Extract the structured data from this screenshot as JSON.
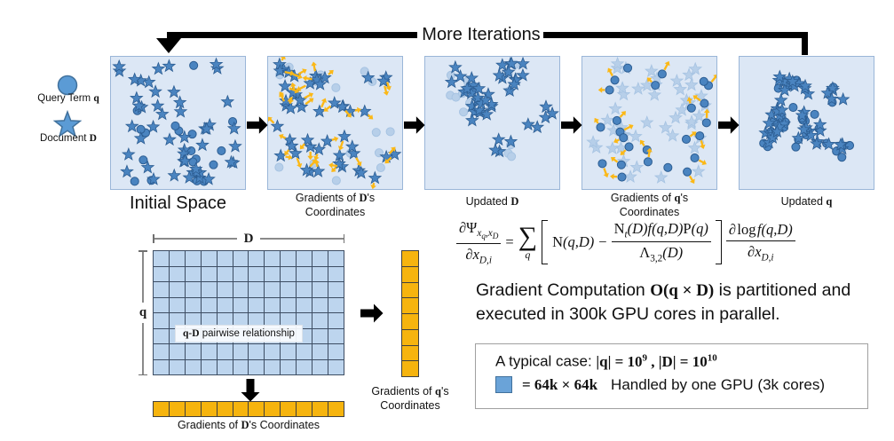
{
  "loop": {
    "label": "More Iterations"
  },
  "legend": {
    "query_pre": "Query Term ",
    "query_em": "q",
    "doc_pre": "Document ",
    "doc_em": "D"
  },
  "panels": [
    {
      "seed": 7,
      "stars": 48,
      "circles": 18,
      "star_style": "strong",
      "circle_style": "strong",
      "arrows_on": "none",
      "layout": "uniform",
      "label": [
        {
          "pre": "Initial Space",
          "em": "",
          "post": ""
        }
      ]
    },
    {
      "seed": 13,
      "stars": 50,
      "circles": 15,
      "star_style": "strong",
      "circle_style": "faded",
      "arrows_on": "stars",
      "layout": "uniform",
      "label": [
        {
          "pre": "Gradients of ",
          "em": "D",
          "post": "'s"
        },
        {
          "pre": "Coordinates",
          "em": "",
          "post": ""
        }
      ]
    },
    {
      "seed": 29,
      "stars": 46,
      "circles": 16,
      "star_style": "strong",
      "circle_style": "faded",
      "arrows_on": "none",
      "layout": "cluster",
      "label": [
        {
          "pre": "Updated ",
          "em": "D",
          "post": ""
        }
      ]
    },
    {
      "seed": 41,
      "stars": 46,
      "circles": 25,
      "star_style": "faded",
      "circle_style": "strong",
      "arrows_on": "circles",
      "layout": "uniform",
      "label": [
        {
          "pre": "Gradients of ",
          "em": "q",
          "post": "'s"
        },
        {
          "pre": "Coordinates",
          "em": "",
          "post": ""
        }
      ]
    },
    {
      "seed": 57,
      "stars": 48,
      "circles": 26,
      "star_style": "strong",
      "circle_style": "strong",
      "arrows_on": "none",
      "layout": "cluster",
      "label": [
        {
          "pre": "Updated ",
          "em": "q",
          "post": ""
        }
      ]
    }
  ],
  "matrix": {
    "cols": 12,
    "rows": 8,
    "top_label": "D",
    "left_label": "q",
    "overlay_em": "q-D",
    "overlay_text": " pairwise relationship",
    "col_vec_cells": 8,
    "row_vec_cells": 12,
    "col_vec_label": [
      {
        "pre": "Gradients of ",
        "em": "q",
        "post": "'s"
      },
      {
        "pre": "Coordinates",
        "em": "",
        "post": ""
      }
    ],
    "row_vec_label": {
      "pre": "Gradients of ",
      "em": "D",
      "post": "'s Coordinates"
    }
  },
  "formula": {
    "d": "∂",
    "psi": "Ψ",
    "x": "x",
    "q": "q",
    "D": "D",
    "comma": ",",
    "Di": "D,i",
    "eq": "=",
    "sigma": "∑",
    "N": "N",
    "qD": "(q,D)",
    "minus": "−",
    "t": "t",
    "f": "f",
    "P": "P",
    "Pq": "(q)",
    "lam": "Λ",
    "lamsub": "3,2",
    "lamD": "(D)",
    "log": "log"
  },
  "caption": {
    "pre": "Gradient Computation ",
    "em": "O(q × D)",
    "post": " is partitioned and",
    "line2": "executed in 300k GPU cores in parallel."
  },
  "typical_box": {
    "line1_pre": "A typical case: ",
    "m1": "|q| = 10",
    "sup1": "9",
    "m2": " , |D| = 10",
    "sup2": "10",
    "eq": "= 64k × 64k",
    "rest": "Handled by one GPU (3k cores)"
  },
  "colors": {
    "strong_fill": "#4a84c0",
    "strong_stroke": "#2c5d92",
    "faded_fill": "#b7cfe9",
    "faded_stroke": "#a6c3e2",
    "arrow_yellow": "#fbb817",
    "panel_bg": "#dce7f5",
    "grid_cell": "#bdd5ee",
    "vector_yellow": "#f6b40e"
  }
}
